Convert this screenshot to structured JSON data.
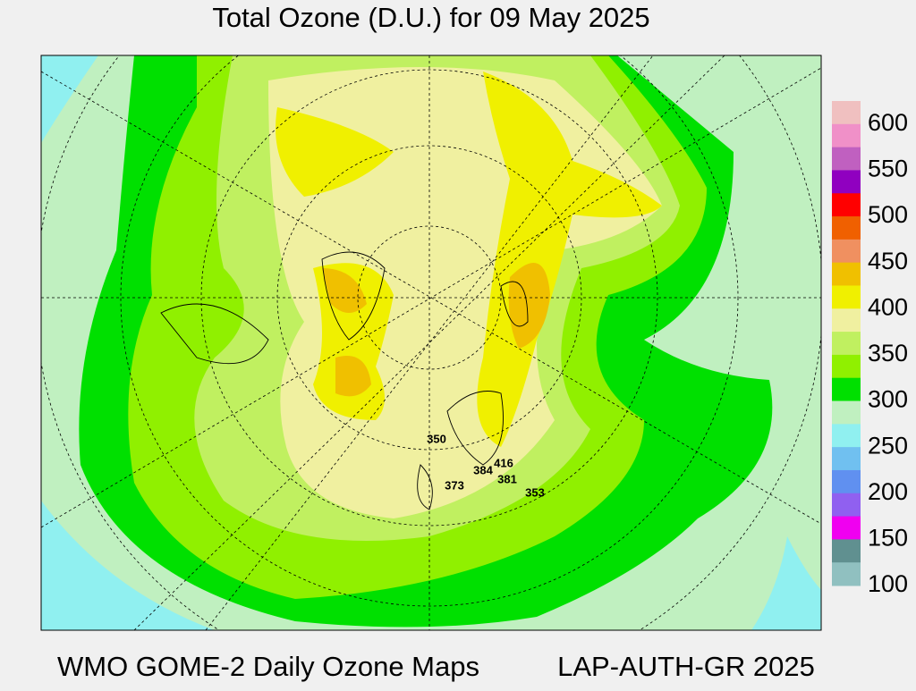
{
  "title": "Total Ozone (D.U.) for 09 May 2025",
  "footer_left": "WMO GOME-2 Daily Ozone Maps",
  "footer_right": "LAP-AUTH-GR 2025",
  "colorbar": {
    "colors": [
      "#f0c0c0",
      "#f090c8",
      "#c060c0",
      "#9000c0",
      "#ff0000",
      "#f06000",
      "#f09060",
      "#f0c000",
      "#f0f000",
      "#f0f0a0",
      "#c0f060",
      "#90f000",
      "#00e000",
      "#c0f0c0",
      "#90f0f0",
      "#70c0f0",
      "#6090f0",
      "#9060f0",
      "#f000f0",
      "#609090",
      "#90c0c0"
    ],
    "ticks": [
      600,
      550,
      500,
      450,
      400,
      350,
      300,
      250,
      200,
      150,
      100
    ]
  },
  "stations": [
    350,
    373,
    384,
    416,
    381,
    353
  ]
}
